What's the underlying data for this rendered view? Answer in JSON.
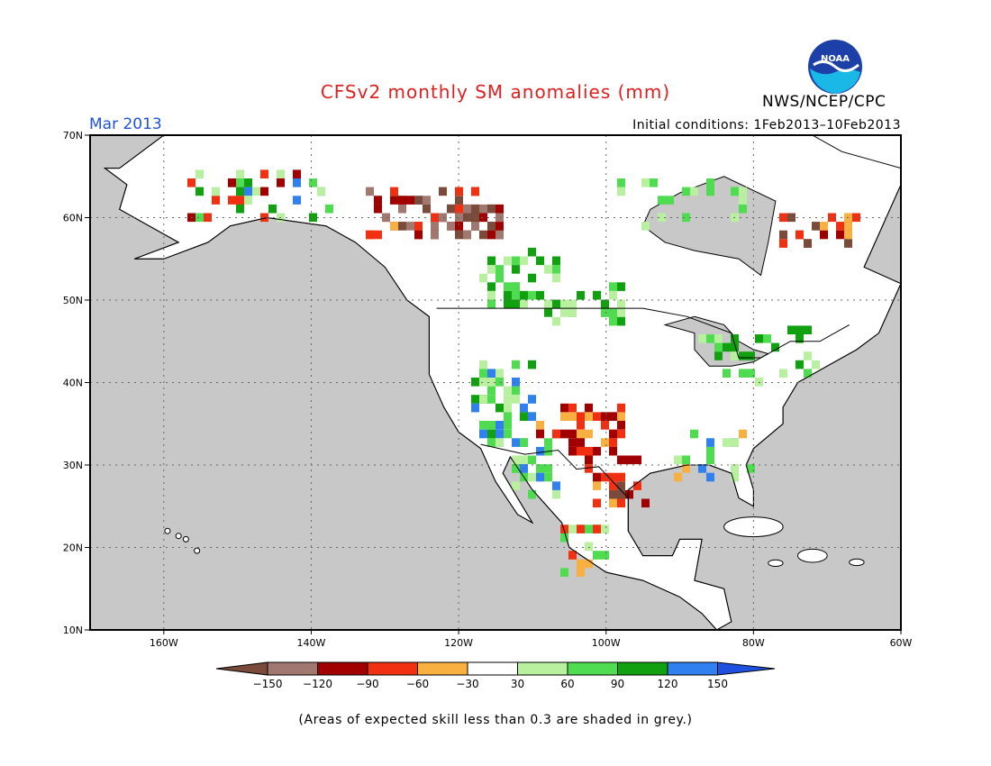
{
  "header": {
    "title": "CFSv2 monthly SM anomalies (mm)",
    "month": "Mar 2013",
    "initial_conditions": "Initial conditions: 1Feb2013–10Feb2013",
    "agency": "NWS/NCEP/CPC",
    "logo_text": "NOAA"
  },
  "map": {
    "lat_labels": [
      "70N",
      "60N",
      "50N",
      "40N",
      "30N",
      "20N",
      "10N"
    ],
    "lon_labels": [
      "160W",
      "140W",
      "120W",
      "100W",
      "80W",
      "60W"
    ],
    "colors": {
      "no_skill_grey": "#c8c8c8",
      "neutral_land": "#ffffff",
      "outline": "#000000"
    },
    "anomaly_regions": [
      {
        "region": "Alaska / Yukon",
        "class": "mixed green and red"
      },
      {
        "region": "British Columbia / Alberta",
        "class": "dry (orange to brown)"
      },
      {
        "region": "Saskatchewan / Manitoba",
        "class": "wet (green)"
      },
      {
        "region": "US Southwest / Texas",
        "class": "mixed dry and wet"
      },
      {
        "region": "Northeast Canada",
        "class": "dry (red)"
      }
    ]
  },
  "legend": {
    "tick_labels": [
      "−150",
      "−120",
      "−90",
      "−60",
      "−30",
      "30",
      "60",
      "90",
      "120",
      "150"
    ],
    "colors": [
      "#7a4a3a",
      "#a07870",
      "#a00000",
      "#f03010",
      "#f8b040",
      "#ffffff",
      "#b8f0a0",
      "#50dc50",
      "#10a010",
      "#3080f0",
      "#2050e0"
    ]
  },
  "footnote": "(Areas of expected skill less than 0.3 are shaded in grey.)"
}
